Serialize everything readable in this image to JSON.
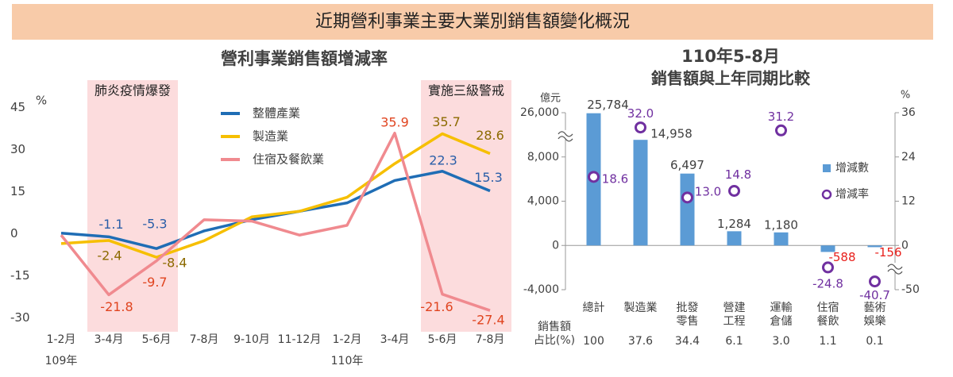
{
  "header": {
    "title": "近期營利事業主要大業別銷售額變化概況"
  },
  "chart_data": [
    {
      "type": "line",
      "title": "營利事業銷售額增減率",
      "y_label": "%",
      "categories": [
        "1-2月",
        "3-4月",
        "5-6月",
        "7-8月",
        "9-10月",
        "11-12月",
        "1-2月",
        "3-4月",
        "5-6月",
        "7-8月"
      ],
      "year_labels": [
        "109年",
        null,
        null,
        null,
        null,
        null,
        "110年",
        null,
        null,
        null
      ],
      "ylim": [
        -35,
        50
      ],
      "yticks": [
        -30,
        -15,
        0,
        15,
        30,
        45
      ],
      "grid": false,
      "highlights": [
        {
          "label": "肺炎疫情爆發",
          "start": 1,
          "end": 2,
          "color": "#fcdcdd"
        },
        {
          "label": "實施三級警戒",
          "start": 8,
          "end": 9,
          "color": "#fcdcdd"
        }
      ],
      "series": [
        {
          "name": "整體產業",
          "color": "#1f6db5",
          "label_color": "#2a5ea8",
          "values": [
            0.2,
            -1.1,
            -5.3,
            1,
            5,
            8,
            11,
            19,
            22.3,
            15.3
          ],
          "value_labels": [
            null,
            "-1.1",
            "-5.3",
            null,
            null,
            null,
            null,
            null,
            "22.3",
            "15.3"
          ]
        },
        {
          "name": "製造業",
          "color": "#f6bf00",
          "label_color": "#8c6a00",
          "values": [
            -3.5,
            -2.4,
            -8.4,
            -2.5,
            6,
            8,
            13,
            25,
            35.7,
            28.6
          ],
          "value_labels": [
            null,
            "-2.4",
            "-8.4",
            null,
            null,
            null,
            null,
            null,
            "35.7",
            "28.6"
          ]
        },
        {
          "name": "住宿及餐飲業",
          "color": "#f08a8f",
          "label_color": "#e0441f",
          "values": [
            -0.5,
            -21.8,
            -9.7,
            5,
            4.5,
            -0.5,
            3,
            35.9,
            -21.6,
            -27.4
          ],
          "value_labels": [
            null,
            "-21.8",
            "-9.7",
            null,
            null,
            null,
            null,
            "35.9",
            "-21.6",
            "-27.4"
          ]
        }
      ]
    },
    {
      "type": "combo",
      "title": "110年5-8月",
      "subtitle": "銷售額與上年同期比較",
      "y_label": "億元",
      "y2_label": "%",
      "axis_break": true,
      "categories": [
        "總計",
        "製造業",
        "批發\n零售",
        "營建\n工程",
        "運輸\n倉儲",
        "住宿\n餐飲",
        "藝術\n娛樂"
      ],
      "ylim": [
        -4000,
        26000
      ],
      "yticks": [
        {
          "value": -4000,
          "label": "-4,000"
        },
        0,
        {
          "value": 4000,
          "label": "4,000"
        },
        {
          "value": 8000,
          "label": "8,000"
        },
        {
          "value": 26000,
          "label": "26,000"
        }
      ],
      "y2lim": [
        -50,
        36
      ],
      "y2ticks": [
        -50,
        0,
        12,
        24,
        36
      ],
      "negative_label_color": "#e8201c",
      "series": [
        {
          "name": "增減數",
          "type": "bar",
          "color": "#5b9bd5",
          "values": [
            25784,
            14958,
            6497,
            1284,
            1180,
            -588,
            -156
          ],
          "value_labels": [
            "25,784",
            "14,958",
            "6,497",
            "1,284",
            "1,180",
            "-588",
            "-156"
          ]
        },
        {
          "name": "增減率",
          "type": "scatter",
          "axis": "y2",
          "color": "#7030a0",
          "values": [
            18.6,
            32.0,
            13.0,
            14.8,
            31.2,
            -24.8,
            -40.7
          ],
          "value_labels": [
            "18.6",
            "32.0",
            "13.0",
            "14.8",
            "31.2",
            "-24.8",
            "-40.7"
          ]
        }
      ],
      "share": {
        "label": "銷售額\n占比(%)",
        "values": [
          "100",
          "37.6",
          "34.4",
          "6.1",
          "3.0",
          "1.1",
          "0.1"
        ]
      }
    }
  ]
}
